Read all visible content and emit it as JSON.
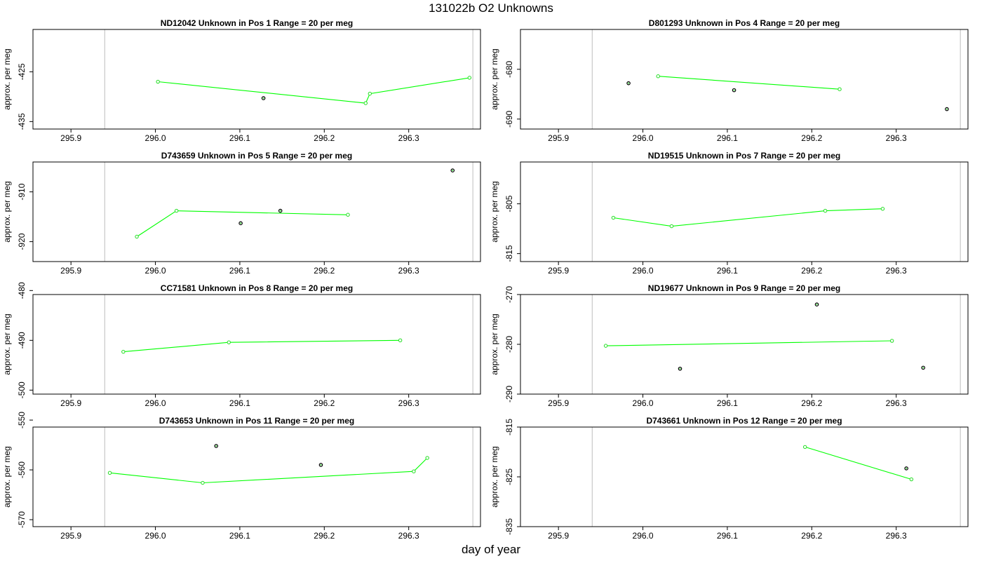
{
  "title": "131022b  O2 Unknowns",
  "xlabel": "day of year",
  "colors": {
    "line": "#00ff00",
    "open_point": "#22dd22",
    "solid_point": "#000000",
    "ref_line": "#c8c8c8",
    "frame": "#000000"
  },
  "chart_data": [
    {
      "type": "scatter",
      "title": "ND12042    Unknown in Pos 1          Range = 20 per meg",
      "ylabel": "approx. per meg",
      "xlim": [
        295.855,
        296.385
      ],
      "ylim": [
        -436.5,
        -416.5
      ],
      "xticks": [
        295.9,
        296.0,
        296.1,
        296.2,
        296.3
      ],
      "xtick_labels": [
        "295.9",
        "296.0",
        "296.1",
        "296.2",
        "296.3"
      ],
      "yticks": [
        -425,
        -435
      ],
      "ytick_labels": [
        "-425",
        "-435"
      ],
      "ref_lines_x": [
        295.94,
        296.376
      ],
      "series": [
        {
          "style": "line",
          "points": [
            [
              296.003,
              -427.0
            ],
            [
              296.249,
              -431.3
            ],
            [
              296.254,
              -429.4
            ],
            [
              296.372,
              -426.2
            ]
          ]
        },
        {
          "style": "points",
          "points": [
            [
              296.128,
              -430.3
            ]
          ]
        }
      ]
    },
    {
      "type": "scatter",
      "title": "D801293    Unknown in Pos 4          Range = 20 per meg",
      "ylabel": "approx. per meg",
      "xlim": [
        295.855,
        296.385
      ],
      "ylim": [
        -692.0,
        -672.0
      ],
      "xticks": [
        295.9,
        296.0,
        296.1,
        296.2,
        296.3
      ],
      "xtick_labels": [
        "295.9",
        "296.0",
        "296.1",
        "296.2",
        "296.3"
      ],
      "yticks": [
        -680,
        -690
      ],
      "ytick_labels": [
        "-680",
        "-690"
      ],
      "ref_lines_x": [
        295.94,
        296.376
      ],
      "series": [
        {
          "style": "line",
          "points": [
            [
              296.018,
              -681.4
            ],
            [
              296.233,
              -684.0
            ]
          ]
        },
        {
          "style": "points",
          "points": [
            [
              295.983,
              -682.8
            ],
            [
              296.108,
              -684.2
            ],
            [
              296.36,
              -688.0
            ]
          ]
        }
      ]
    },
    {
      "type": "scatter",
      "title": "D743659    Unknown in Pos 5          Range = 20 per meg",
      "ylabel": "approx. per meg",
      "xlim": [
        295.855,
        296.385
      ],
      "ylim": [
        -924.0,
        -904.0
      ],
      "xticks": [
        295.9,
        296.0,
        296.1,
        296.2,
        296.3
      ],
      "xtick_labels": [
        "295.9",
        "296.0",
        "296.1",
        "296.2",
        "296.3"
      ],
      "yticks": [
        -910,
        -920
      ],
      "ytick_labels": [
        "-910",
        "-920"
      ],
      "ref_lines_x": [
        295.94,
        296.376
      ],
      "series": [
        {
          "style": "line",
          "points": [
            [
              295.978,
              -919.0
            ],
            [
              296.025,
              -913.8
            ],
            [
              296.228,
              -914.6
            ]
          ]
        },
        {
          "style": "points",
          "points": [
            [
              296.101,
              -916.3
            ],
            [
              296.148,
              -913.8
            ],
            [
              296.352,
              -905.7
            ]
          ]
        }
      ]
    },
    {
      "type": "scatter",
      "title": "ND19515    Unknown in Pos 7          Range = 20 per meg",
      "ylabel": "approx. per meg",
      "xlim": [
        295.855,
        296.385
      ],
      "ylim": [
        -816.6,
        -796.6
      ],
      "xticks": [
        295.9,
        296.0,
        296.1,
        296.2,
        296.3
      ],
      "xtick_labels": [
        "295.9",
        "296.0",
        "296.1",
        "296.2",
        "296.3"
      ],
      "yticks": [
        -805,
        -815
      ],
      "ytick_labels": [
        "-805",
        "-815"
      ],
      "ref_lines_x": [
        295.94,
        296.376
      ],
      "series": [
        {
          "style": "line",
          "points": [
            [
              295.965,
              -807.8
            ],
            [
              296.034,
              -809.5
            ],
            [
              296.216,
              -806.4
            ],
            [
              296.284,
              -806.0
            ]
          ]
        }
      ]
    },
    {
      "type": "scatter",
      "title": "CC71581    Unknown in Pos 8          Range = 20 per meg",
      "ylabel": "approx. per meg",
      "xlim": [
        295.855,
        296.385
      ],
      "ylim": [
        -500.8,
        -480.8
      ],
      "xticks": [
        295.9,
        296.0,
        296.1,
        296.2,
        296.3
      ],
      "xtick_labels": [
        "295.9",
        "296.0",
        "296.1",
        "296.2",
        "296.3"
      ],
      "yticks": [
        -480,
        -490,
        -500
      ],
      "ytick_labels": [
        "-480",
        "-490",
        "-500"
      ],
      "ref_lines_x": [
        295.94,
        296.376
      ],
      "series": [
        {
          "style": "line",
          "points": [
            [
              295.962,
              -492.3
            ],
            [
              296.087,
              -490.4
            ],
            [
              296.29,
              -490.0
            ]
          ]
        }
      ]
    },
    {
      "type": "scatter",
      "title": "ND19677    Unknown in Pos 9          Range = 20 per meg",
      "ylabel": "approx. per meg",
      "xlim": [
        295.855,
        296.385
      ],
      "ylim": [
        -290.0,
        -270.0
      ],
      "xticks": [
        295.9,
        296.0,
        296.1,
        296.2,
        296.3
      ],
      "xtick_labels": [
        "295.9",
        "296.0",
        "296.1",
        "296.2",
        "296.3"
      ],
      "yticks": [
        -270,
        -280,
        -290
      ],
      "ytick_labels": [
        "-270",
        "-280",
        "-290"
      ],
      "ref_lines_x": [
        295.94,
        296.376
      ],
      "series": [
        {
          "style": "line",
          "points": [
            [
              295.956,
              -280.3
            ],
            [
              296.295,
              -279.3
            ]
          ]
        },
        {
          "style": "points",
          "points": [
            [
              296.044,
              -284.9
            ],
            [
              296.206,
              -272.0
            ],
            [
              296.332,
              -284.7
            ]
          ]
        }
      ]
    },
    {
      "type": "scatter",
      "title": "D743653    Unknown in Pos 11         Range = 20 per meg",
      "ylabel": "approx. per meg",
      "xlim": [
        295.855,
        296.385
      ],
      "ylim": [
        -571.4,
        -551.4
      ],
      "xticks": [
        295.9,
        296.0,
        296.1,
        296.2,
        296.3
      ],
      "xtick_labels": [
        "295.9",
        "296.0",
        "296.1",
        "296.2",
        "296.3"
      ],
      "yticks": [
        -550,
        -560,
        -570
      ],
      "ytick_labels": [
        "-550",
        "-560",
        "-570"
      ],
      "ref_lines_x": [
        295.94,
        296.376
      ],
      "series": [
        {
          "style": "line",
          "points": [
            [
              295.946,
              -560.6
            ],
            [
              296.056,
              -562.6
            ],
            [
              296.306,
              -560.3
            ],
            [
              296.322,
              -557.6
            ]
          ]
        },
        {
          "style": "points",
          "points": [
            [
              296.072,
              -555.2
            ],
            [
              296.196,
              -559.0
            ]
          ]
        }
      ]
    },
    {
      "type": "scatter",
      "title": "D743661    Unknown in Pos 12         Range = 20 per meg",
      "ylabel": "approx. per meg",
      "xlim": [
        295.855,
        296.385
      ],
      "ylim": [
        -835.0,
        -815.0
      ],
      "xticks": [
        295.9,
        296.0,
        296.1,
        296.2,
        296.3
      ],
      "xtick_labels": [
        "295.9",
        "296.0",
        "296.1",
        "296.2",
        "296.3"
      ],
      "yticks": [
        -815,
        -825,
        -835
      ],
      "ytick_labels": [
        "-815",
        "-825",
        "-835"
      ],
      "ref_lines_x": [
        295.94,
        296.376
      ],
      "series": [
        {
          "style": "line",
          "points": [
            [
              296.192,
              -819.0
            ],
            [
              296.318,
              -825.5
            ]
          ]
        },
        {
          "style": "points",
          "points": [
            [
              296.312,
              -823.3
            ]
          ]
        }
      ]
    }
  ]
}
